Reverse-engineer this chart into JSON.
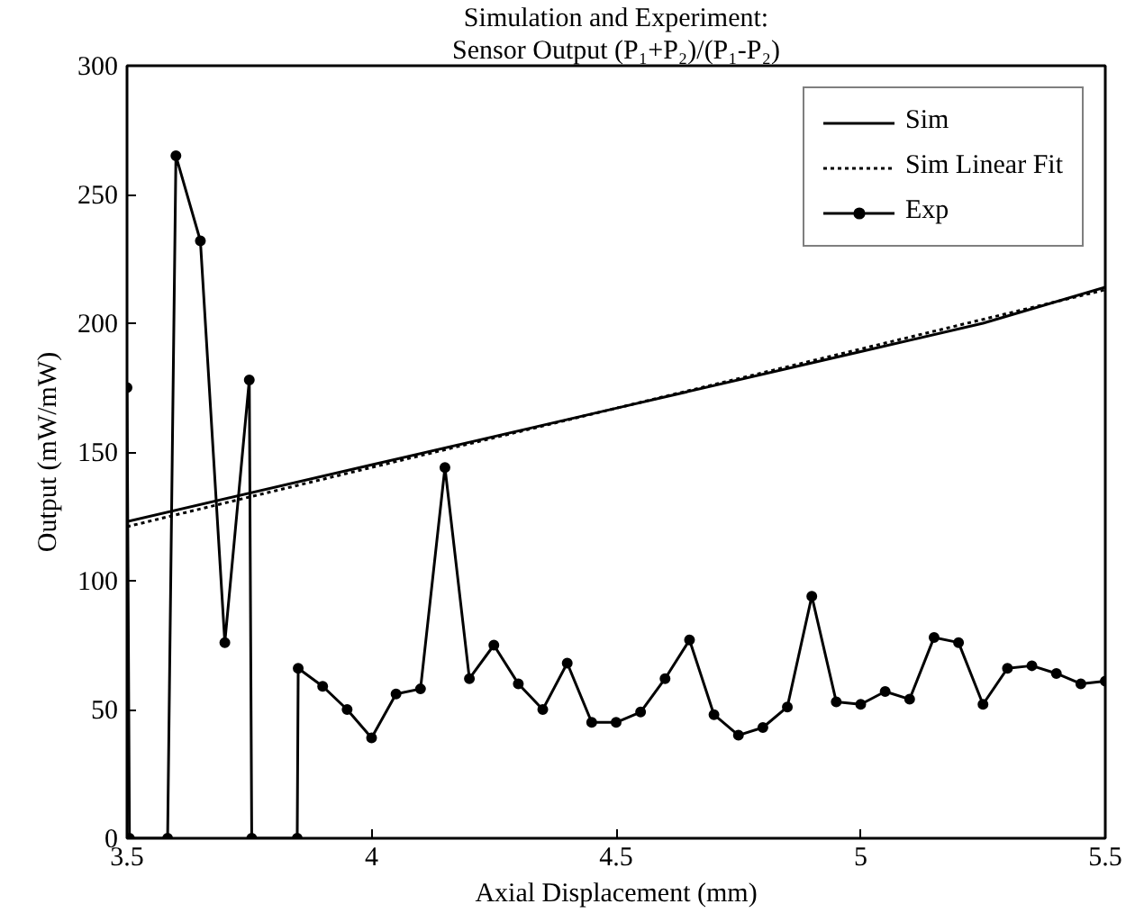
{
  "chart_data": {
    "type": "line",
    "title": "Simulation and Experiment:",
    "subtitle": "Sensor Output (P₁+P₂)/(P₁-P₂)",
    "xlabel": "Axial Displacement (mm)",
    "ylabel": "Output (mW/mW)",
    "xlim": [
      3.5,
      5.5
    ],
    "ylim": [
      0,
      300
    ],
    "xticks": [
      3.5,
      4,
      4.5,
      5,
      5.5
    ],
    "yticks": [
      0,
      50,
      100,
      150,
      200,
      250,
      300
    ],
    "grid": false,
    "legend": "top right",
    "series": [
      {
        "name": "Sim",
        "color": "#000000",
        "marker": "none",
        "line_style": "solid",
        "x": [
          3.5,
          4,
          4.5,
          5,
          5.25,
          5.5
        ],
        "values": [
          123,
          145,
          167,
          189,
          200,
          214
        ]
      },
      {
        "name": "Sim Linear Fit",
        "color": "#000000",
        "marker": "none",
        "line_style": "dotted",
        "x": [
          3.5,
          5.5
        ],
        "values": [
          121,
          213
        ]
      },
      {
        "name": "Exp",
        "color": "#000000",
        "marker": "circle",
        "line_style": "solid",
        "x": [
          3.5,
          3.505,
          3.583,
          3.6,
          3.65,
          3.7,
          3.75,
          3.755,
          3.848,
          3.85,
          3.9,
          3.95,
          4,
          4.05,
          4.1,
          4.15,
          4.2,
          4.25,
          4.3,
          4.35,
          4.4,
          4.45,
          4.5,
          4.55,
          4.6,
          4.65,
          4.7,
          4.75,
          4.8,
          4.85,
          4.9,
          4.95,
          5,
          5.05,
          5.1,
          5.15,
          5.2,
          5.25,
          5.3,
          5.35,
          5.4,
          5.45,
          5.5
        ],
        "values": [
          175,
          0,
          0,
          265,
          232,
          76,
          178,
          0,
          0,
          66,
          59,
          50,
          39,
          56,
          58,
          144,
          62,
          75,
          60,
          50,
          68,
          45,
          45,
          49,
          62,
          77,
          48,
          40,
          43,
          51,
          94,
          53,
          52,
          57,
          54,
          78,
          76,
          52,
          66,
          67,
          64,
          60,
          61
        ]
      }
    ]
  }
}
